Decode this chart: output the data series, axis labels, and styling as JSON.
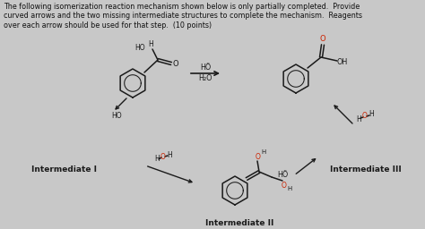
{
  "background_color": "#c8c8c8",
  "title_text": "The following isomerization reaction mechanism shown below is only partially completed.  Provide\ncurved arrows and the two missing intermediate structures to complete the mechanism.  Reagents\nover each arrow should be used for that step.  (10 points)",
  "title_fontsize": 5.8,
  "title_color": "#111111",
  "label_intermediate_I": "Intermediate I",
  "label_intermediate_II": "Intermediate II",
  "label_intermediate_III": "Intermediate III",
  "mol_color": "#1a1a1a",
  "red_color": "#cc2200",
  "arrow_color": "#1a1a1a"
}
